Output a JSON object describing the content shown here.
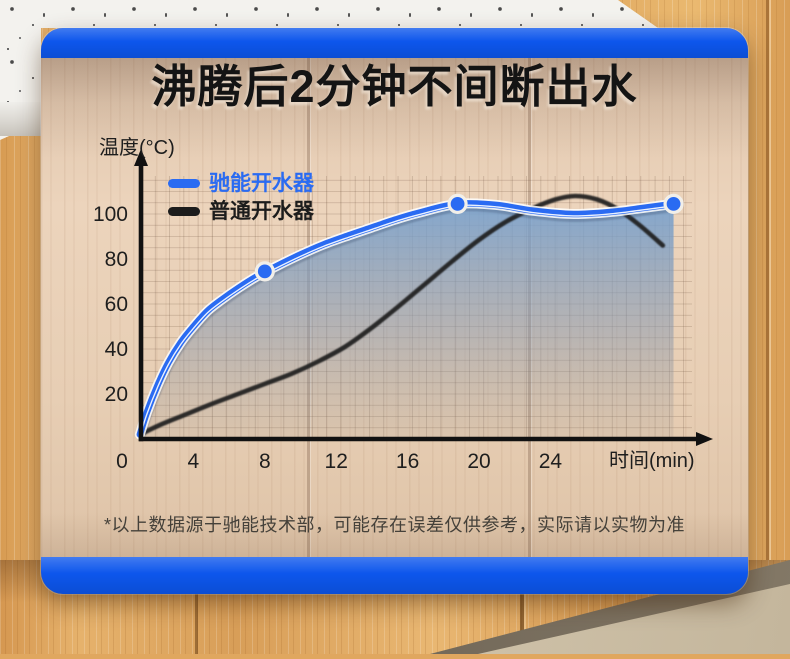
{
  "card": {
    "accent_color": "#0d56ec",
    "title": "沸腾后2分钟不间断出水",
    "footnote": "*以上数据源于驰能技术部，可能存在误差仅供参考，实际请以实物为准"
  },
  "chart_data": {
    "type": "line",
    "title": "沸腾后2分钟不间断出水",
    "xlabel": "时间(min)",
    "ylabel": "温度(°C)",
    "x_ticks": [
      0,
      4,
      8,
      12,
      16,
      20,
      24
    ],
    "y_ticks": [
      20,
      40,
      60,
      80,
      100
    ],
    "xlim": [
      0,
      33
    ],
    "ylim": [
      0,
      117
    ],
    "grid": true,
    "legend_position": "top-left",
    "series": [
      {
        "name": "驰能开水器",
        "color": "#2a6bf2",
        "fill": true,
        "fill_gradient": [
          "rgba(116,160,208,0.88)",
          "rgba(134,152,176,0.50)",
          "rgba(150,148,146,0.12)"
        ],
        "x": [
          1,
          1.4,
          2,
          2.6,
          3.3,
          4,
          4.8,
          5.6,
          6.5,
          7.5,
          8.7,
          10,
          11.3,
          12.7,
          14,
          15.3,
          16.6,
          18.8,
          21,
          23,
          25.3,
          27.5,
          29,
          30.9
        ],
        "y": [
          2,
          12,
          24,
          34,
          43,
          50,
          57,
          62,
          67,
          72,
          77,
          82,
          86.5,
          90.5,
          94,
          97.5,
          100.5,
          104.5,
          104,
          101.5,
          100,
          101,
          102.5,
          104.5
        ],
        "markers": [
          [
            8,
            74.5
          ],
          [
            18.8,
            104.5
          ],
          [
            30.9,
            104.5
          ]
        ]
      },
      {
        "name": "普通开水器",
        "color": "#1c1c1c",
        "x": [
          1,
          2.2,
          3.6,
          5,
          6.5,
          8,
          9.5,
          11,
          12.5,
          14,
          15.5,
          17,
          18.5,
          20,
          21.5,
          23,
          24.3,
          25.4,
          26.6,
          27.8,
          29,
          30.3
        ],
        "y": [
          2,
          6.5,
          11,
          15.5,
          20,
          24.5,
          29,
          34.5,
          41,
          49.5,
          59,
          69,
          79,
          88.5,
          96.5,
          102.5,
          106.5,
          108,
          106.5,
          102,
          95,
          86
        ]
      }
    ]
  }
}
